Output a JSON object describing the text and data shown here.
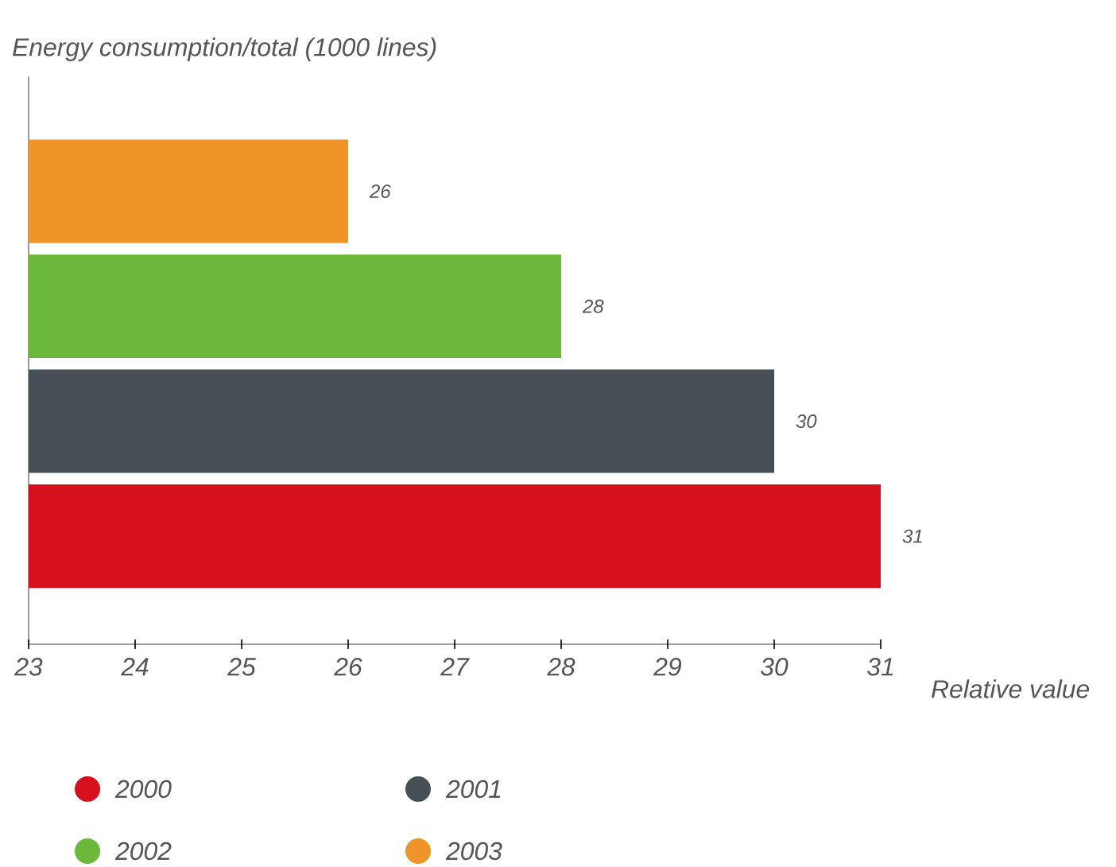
{
  "chart_data": {
    "type": "bar",
    "orientation": "horizontal",
    "ylabel": "Energy consumption/total (1000 lines)",
    "xlabel": "Relative value",
    "categories": [
      null,
      null,
      null,
      null
    ],
    "series": [
      {
        "name": "2000",
        "color": "#d7101e",
        "values": [
          null,
          null,
          null,
          31
        ]
      },
      {
        "name": "2001",
        "color": "#454f55",
        "values": [
          null,
          null,
          30,
          null
        ]
      },
      {
        "name": "2002",
        "color": "#6cb83a",
        "values": [
          null,
          28,
          null,
          null
        ]
      },
      {
        "name": "2003",
        "color": "#ef9428",
        "values": [
          26,
          null,
          null,
          null
        ]
      }
    ],
    "xlim": [
      23,
      31
    ],
    "xticks": [
      23,
      24,
      25,
      26,
      27,
      28,
      29,
      30,
      31
    ],
    "data_labels": true,
    "legend": "bottom",
    "tick_labels": "x",
    "grid": false
  }
}
